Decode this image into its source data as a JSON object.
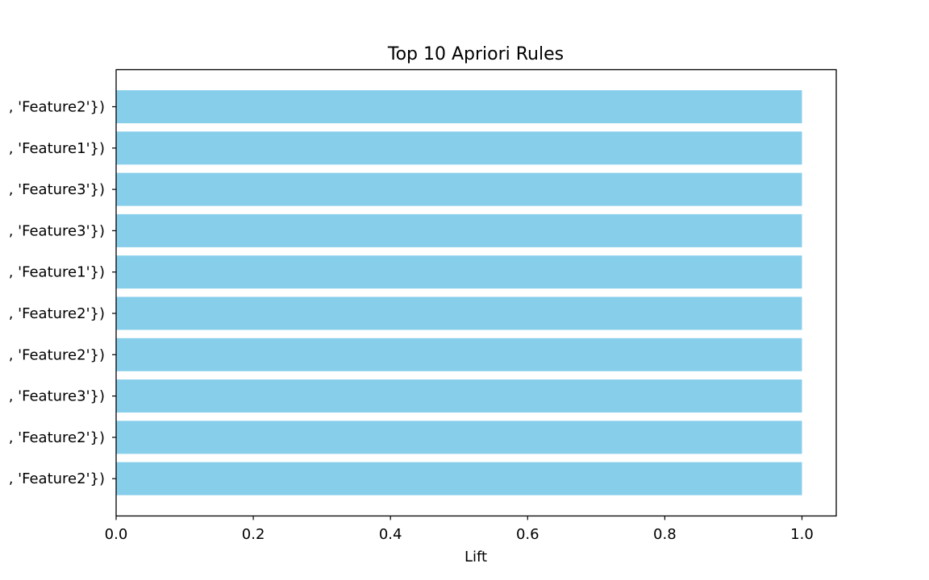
{
  "colors": {
    "bar": "#87ceeb",
    "axis": "#000000",
    "background": "#ffffff"
  },
  "chart_data": {
    "type": "bar",
    "orientation": "horizontal",
    "title": "Top 10 Apriori Rules",
    "xlabel": "Lift",
    "ylabel": "",
    "categories": [
      ", 'Feature2'})",
      ", 'Feature1'})",
      ", 'Feature3'})",
      ", 'Feature3'})",
      ", 'Feature1'})",
      ", 'Feature2'})",
      ", 'Feature2'})",
      ", 'Feature3'})",
      ", 'Feature2'})",
      ", 'Feature2'})"
    ],
    "values": [
      1.0,
      1.0,
      1.0,
      1.0,
      1.0,
      1.0,
      1.0,
      1.0,
      1.0,
      1.0
    ],
    "xlim": [
      0.0,
      1.05
    ],
    "x_ticks": [
      "0.0",
      "0.2",
      "0.4",
      "0.6",
      "0.8",
      "1.0"
    ],
    "grid": false,
    "legend": "none"
  }
}
